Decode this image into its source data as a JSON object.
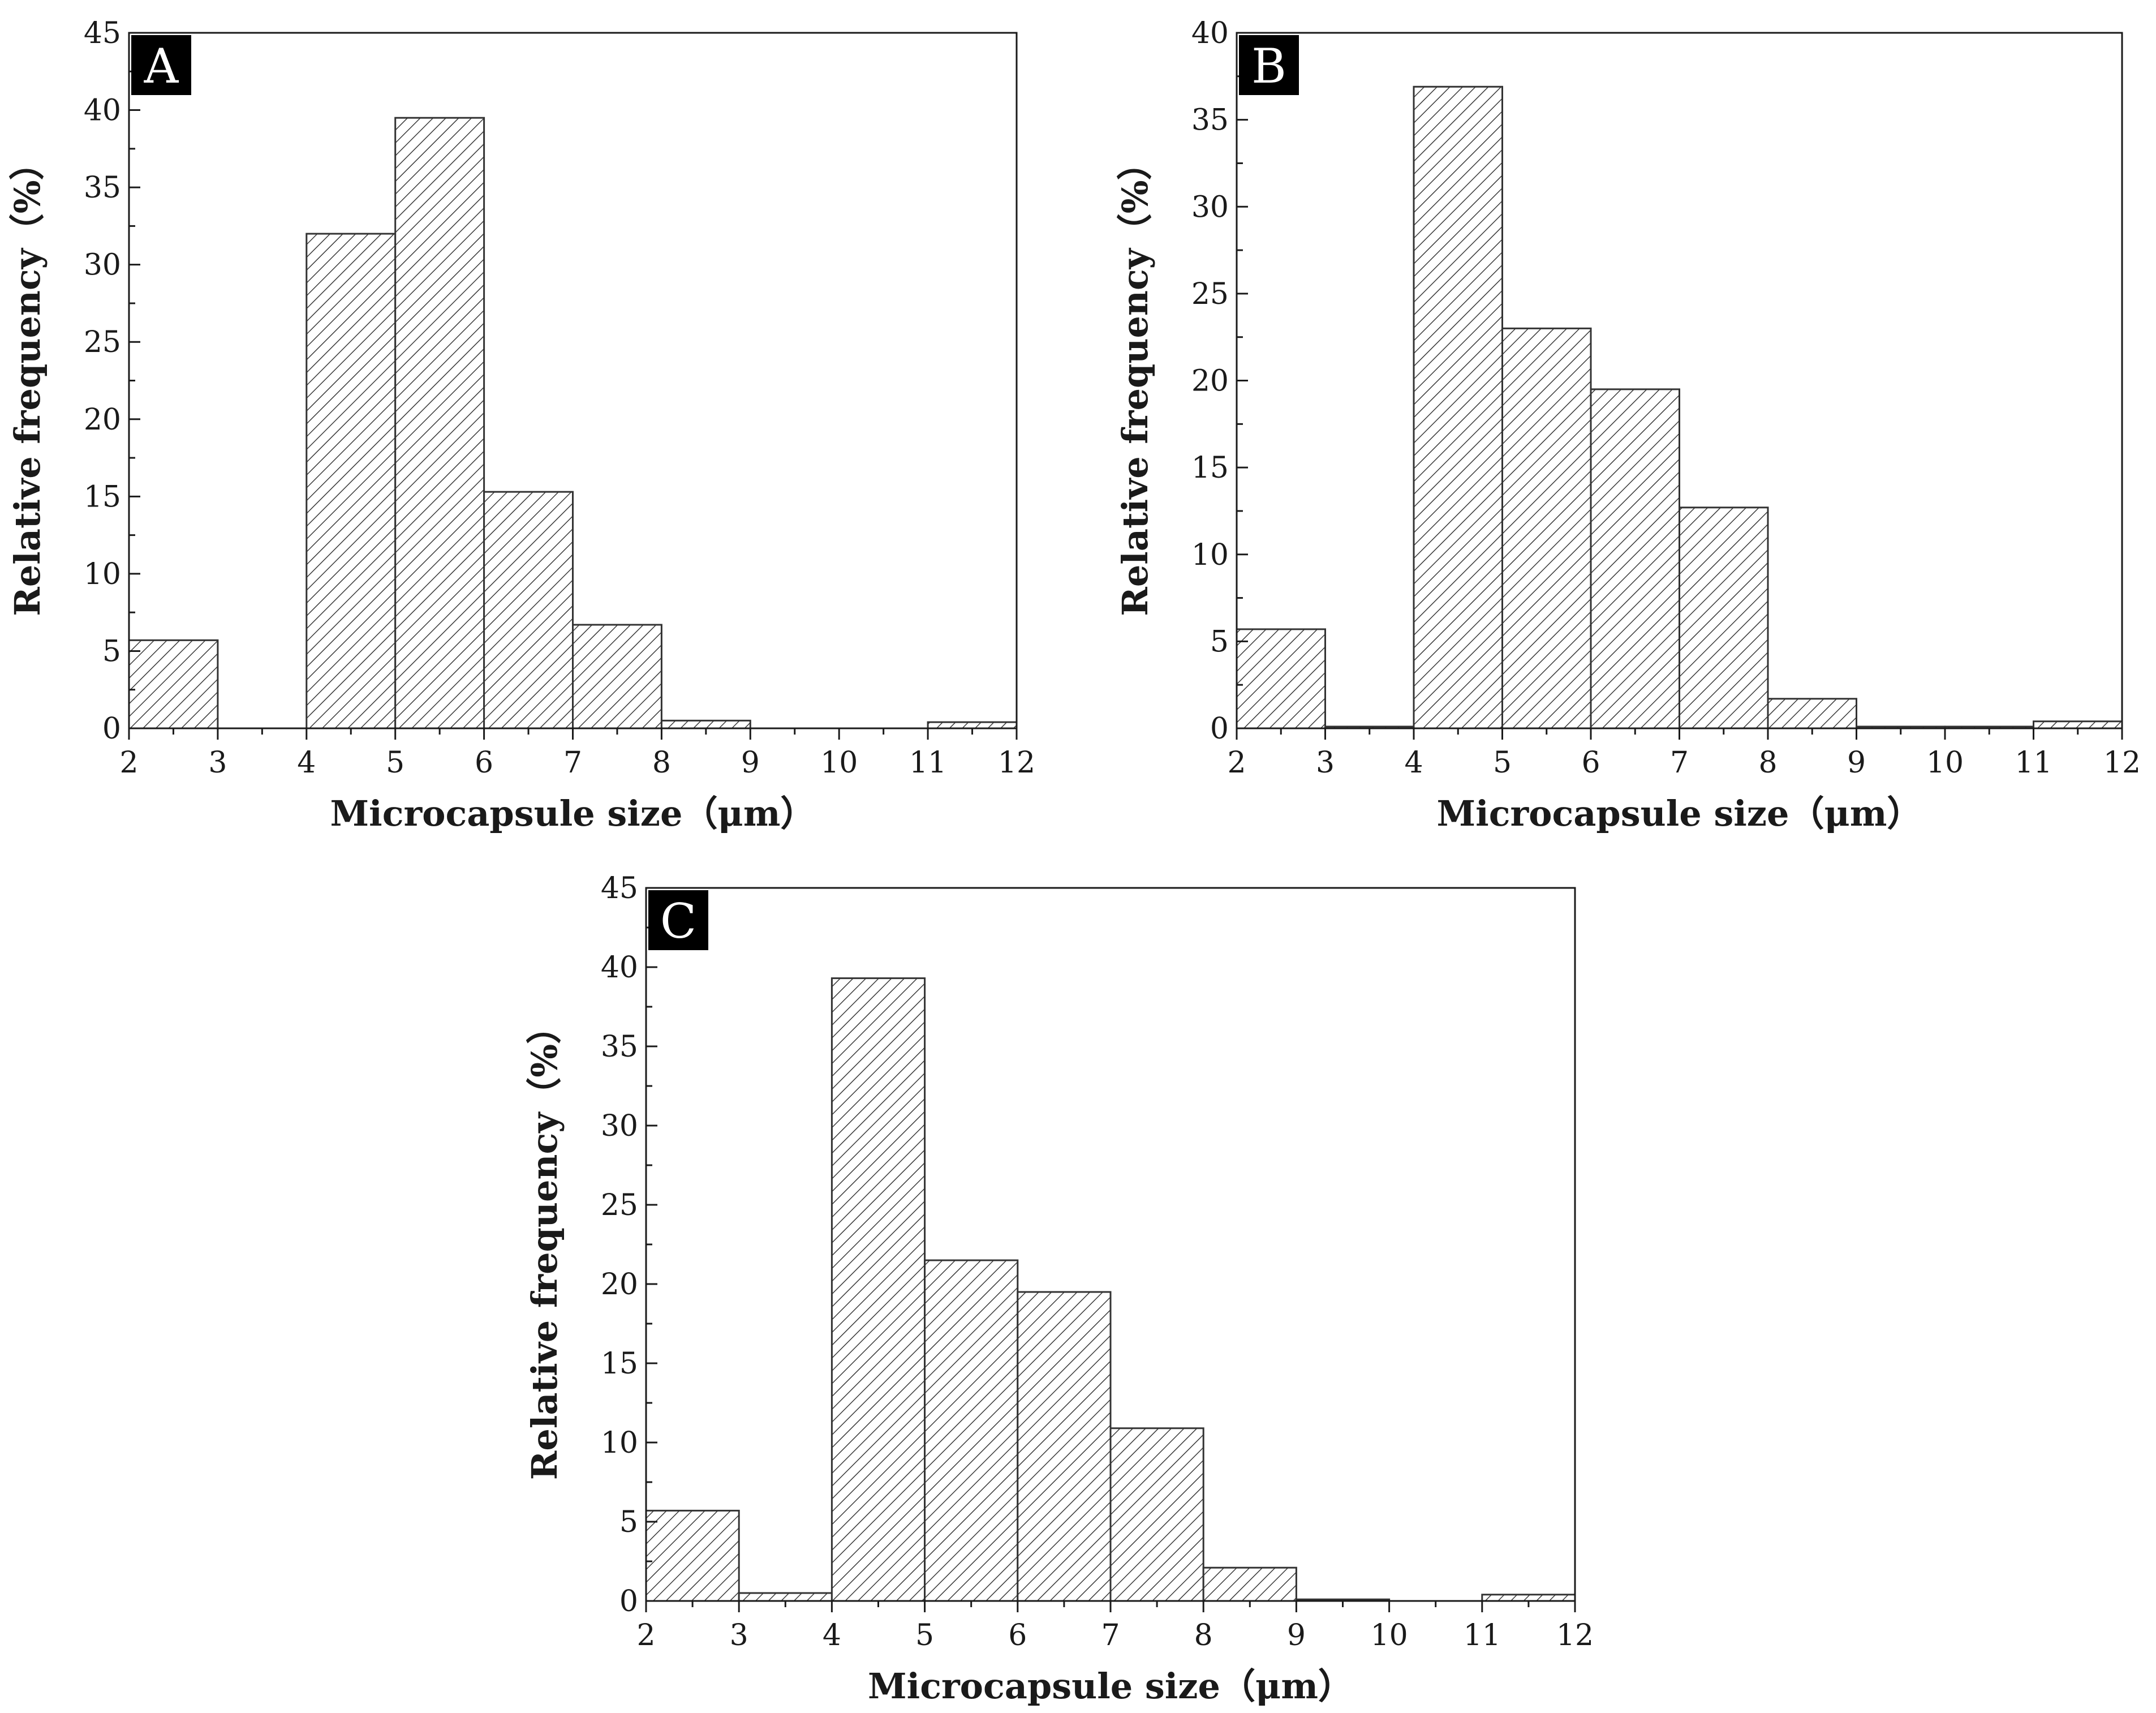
{
  "figure": {
    "panels": [
      "A",
      "B",
      "C"
    ]
  },
  "chart_data": [
    {
      "panel_label": "A",
      "type": "bar",
      "histogram": true,
      "bin_edges": [
        2,
        3,
        4,
        5,
        6,
        7,
        8,
        9,
        10,
        11,
        12
      ],
      "values": [
        5.7,
        0,
        32.0,
        39.5,
        15.3,
        6.7,
        0.5,
        0,
        0,
        0.4
      ],
      "xlabel": "Microcapsule size（μm）",
      "ylabel": "Relative frequency（%）",
      "xlim": [
        2,
        12
      ],
      "ylim": [
        0,
        45
      ],
      "xticks": [
        "2",
        "3",
        "4",
        "5",
        "6",
        "7",
        "8",
        "9",
        "10",
        "11",
        "12"
      ],
      "yticks": [
        "0",
        "5",
        "10",
        "15",
        "20",
        "25",
        "30",
        "35",
        "40",
        "45"
      ],
      "ytick_values": [
        0,
        5,
        10,
        15,
        20,
        25,
        30,
        35,
        40,
        45
      ],
      "fill": "hatched",
      "bar_color": "#333333",
      "grid": false
    },
    {
      "panel_label": "B",
      "type": "bar",
      "histogram": true,
      "bin_edges": [
        2,
        3,
        4,
        5,
        6,
        7,
        8,
        9,
        10,
        11,
        12
      ],
      "values": [
        5.7,
        0.1,
        36.9,
        23.0,
        19.5,
        12.7,
        1.7,
        0.1,
        0.1,
        0.4
      ],
      "xlabel": "Microcapsule size（μm）",
      "ylabel": "Relative frequency（%）",
      "xlim": [
        2,
        12
      ],
      "ylim": [
        0,
        40
      ],
      "xticks": [
        "2",
        "3",
        "4",
        "5",
        "6",
        "7",
        "8",
        "9",
        "10",
        "11",
        "12"
      ],
      "yticks": [
        "0",
        "5",
        "10",
        "15",
        "20",
        "25",
        "30",
        "35",
        "40"
      ],
      "ytick_values": [
        0,
        5,
        10,
        15,
        20,
        25,
        30,
        35,
        40
      ],
      "fill": "hatched",
      "bar_color": "#333333",
      "grid": false
    },
    {
      "panel_label": "C",
      "type": "bar",
      "histogram": true,
      "bin_edges": [
        2,
        3,
        4,
        5,
        6,
        7,
        8,
        9,
        10,
        11,
        12
      ],
      "values": [
        5.7,
        0.5,
        39.3,
        21.5,
        19.5,
        10.9,
        2.1,
        0.1,
        0,
        0.4
      ],
      "xlabel": "Microcapsule size（μm）",
      "ylabel": "Relative frequency（%）",
      "xlim": [
        2,
        12
      ],
      "ylim": [
        0,
        45
      ],
      "xticks": [
        "2",
        "3",
        "4",
        "5",
        "6",
        "7",
        "8",
        "9",
        "10",
        "11",
        "12"
      ],
      "yticks": [
        "0",
        "5",
        "10",
        "15",
        "20",
        "25",
        "30",
        "35",
        "40",
        "45"
      ],
      "ytick_values": [
        0,
        5,
        10,
        15,
        20,
        25,
        30,
        35,
        40,
        45
      ],
      "fill": "hatched",
      "bar_color": "#333333",
      "grid": false
    }
  ]
}
